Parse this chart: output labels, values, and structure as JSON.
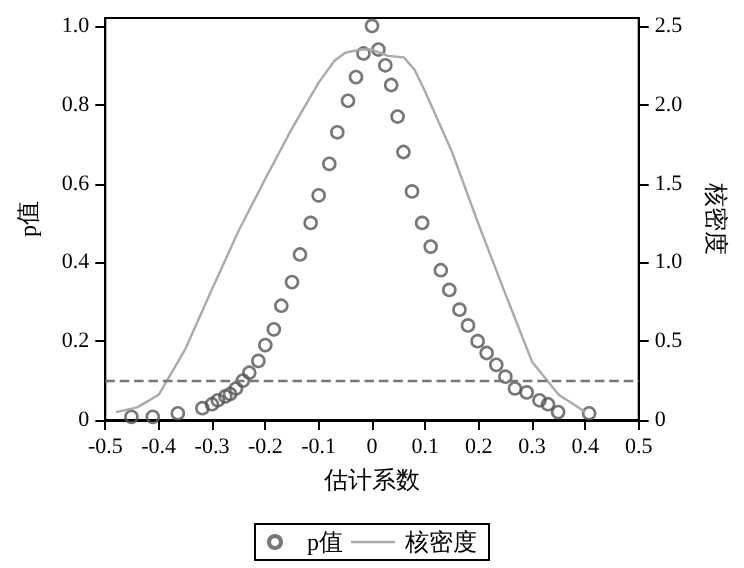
{
  "chart_data": {
    "type": "scatter",
    "xlabel": "估计系数",
    "ylabel": "p值",
    "y2label": "核密度",
    "xlim": [
      -0.5,
      0.5
    ],
    "xticks": [
      -0.5,
      -0.4,
      -0.3,
      -0.2,
      -0.1,
      0,
      0.1,
      0.2,
      0.3,
      0.4,
      0.5
    ],
    "ylim": [
      0,
      1.02
    ],
    "yticks": [
      0,
      0.2,
      0.4,
      0.6,
      0.8,
      {
        "value": 1,
        "label": "1.0"
      }
    ],
    "y2lim": [
      0,
      2.55
    ],
    "y2ticks": [
      0,
      0.5,
      {
        "value": 1,
        "label": "1.0"
      },
      1.5,
      {
        "value": 2,
        "label": "2.0"
      },
      2.5
    ],
    "legend": "bottom",
    "series": [
      {
        "name": "p值",
        "type": "scatter",
        "marker": "circle",
        "color": "#555555",
        "x": [
          -0.451,
          -0.411,
          -0.364,
          -0.318,
          -0.3,
          -0.289,
          -0.275,
          -0.266,
          -0.255,
          -0.242,
          -0.23,
          -0.213,
          -0.2,
          -0.184,
          -0.17,
          -0.15,
          -0.135,
          -0.115,
          -0.1,
          -0.08,
          -0.065,
          -0.045,
          -0.03,
          -0.016,
          0,
          0.012,
          0.025,
          0.036,
          0.048,
          0.059,
          0.075,
          0.094,
          0.11,
          0.129,
          0.145,
          0.164,
          0.18,
          0.198,
          0.215,
          0.233,
          0.25,
          0.268,
          0.29,
          0.314,
          0.33,
          0.349,
          0.407
        ],
        "values": [
          0.008,
          0.008,
          0.017,
          0.03,
          0.04,
          0.05,
          0.06,
          0.066,
          0.08,
          0.1,
          0.12,
          0.15,
          0.19,
          0.23,
          0.29,
          0.35,
          0.42,
          0.5,
          0.57,
          0.65,
          0.73,
          0.81,
          0.87,
          0.93,
          1.0,
          0.94,
          0.9,
          0.85,
          0.77,
          0.68,
          0.58,
          0.5,
          0.44,
          0.38,
          0.33,
          0.28,
          0.24,
          0.2,
          0.17,
          0.14,
          0.11,
          0.08,
          0.07,
          0.05,
          0.04,
          0.02,
          0.017
        ]
      },
      {
        "name": "核密度",
        "type": "line",
        "marker": "none",
        "axis": "y2",
        "color": "#aaaaaa",
        "x": [
          -0.48,
          -0.44,
          -0.4,
          -0.35,
          -0.3,
          -0.25,
          -0.2,
          -0.15,
          -0.1,
          -0.07,
          -0.05,
          -0.02,
          0,
          0.03,
          0.06,
          0.08,
          0.1,
          0.15,
          0.2,
          0.25,
          0.3,
          0.35,
          0.4
        ],
        "values": [
          0.05,
          0.08,
          0.16,
          0.45,
          0.83,
          1.2,
          1.53,
          1.85,
          2.14,
          2.28,
          2.33,
          2.35,
          2.35,
          2.31,
          2.3,
          2.22,
          2.08,
          1.7,
          1.24,
          0.8,
          0.37,
          0.16,
          0.05
        ]
      }
    ],
    "ref_lines": [
      {
        "axis": "y",
        "value": 0.1,
        "color": "#777777",
        "line_style": "dashed"
      }
    ]
  }
}
